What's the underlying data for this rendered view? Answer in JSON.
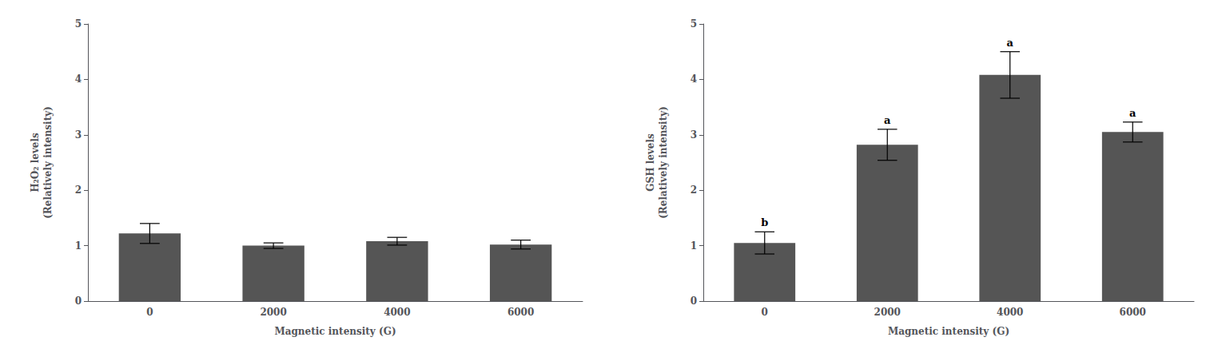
{
  "chart_data": [
    {
      "type": "bar",
      "xlabel": "Magnetic intensity (G)",
      "ylabel": "H₂O₂ levels\n(Relatively intensity)",
      "categories": [
        "0",
        "2000",
        "4000",
        "6000"
      ],
      "values": [
        1.22,
        1.0,
        1.08,
        1.02
      ],
      "errors": [
        0.18,
        0.05,
        0.07,
        0.08
      ],
      "color": "#555555",
      "ylim": [
        0,
        5
      ],
      "yticks": [
        0,
        1,
        2,
        3,
        4,
        5
      ],
      "grid": false
    },
    {
      "type": "bar",
      "xlabel": "Magnetic intensity (G)",
      "ylabel": "GSH levels\n(Relatively intensity)",
      "categories": [
        "0",
        "2000",
        "4000",
        "6000"
      ],
      "values": [
        1.05,
        2.82,
        4.08,
        3.05
      ],
      "errors": [
        0.2,
        0.28,
        0.42,
        0.18
      ],
      "annotations": [
        "b",
        "a",
        "a",
        "a"
      ],
      "color": "#555555",
      "ylim": [
        0,
        5
      ],
      "yticks": [
        0,
        1,
        2,
        3,
        4,
        5
      ],
      "grid": false
    }
  ]
}
